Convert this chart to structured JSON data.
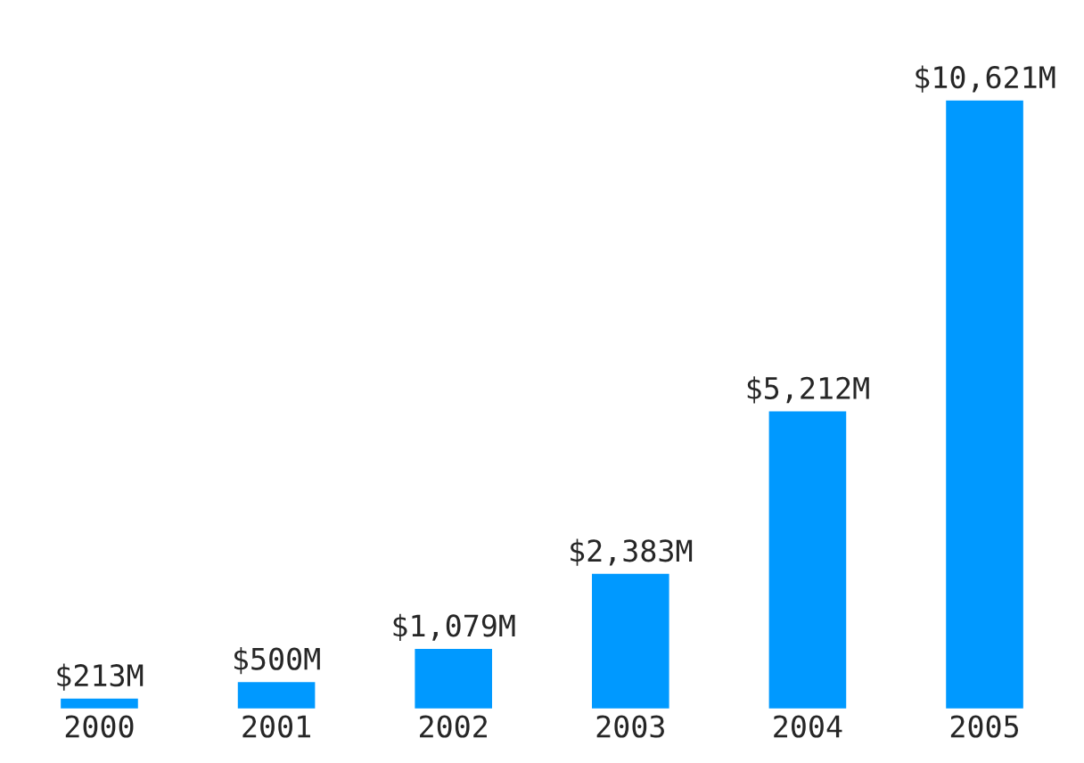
{
  "chart_data": {
    "type": "bar",
    "categories": [
      "2000",
      "2001",
      "2002",
      "2003",
      "2004",
      "2005"
    ],
    "values": [
      213,
      500,
      1079,
      2383,
      5212,
      10621
    ],
    "value_labels": [
      "$213M",
      "$500M",
      "$1,079M",
      "$2,383M",
      "$5,212M",
      "$10,621M"
    ],
    "color": "#0099ff"
  }
}
